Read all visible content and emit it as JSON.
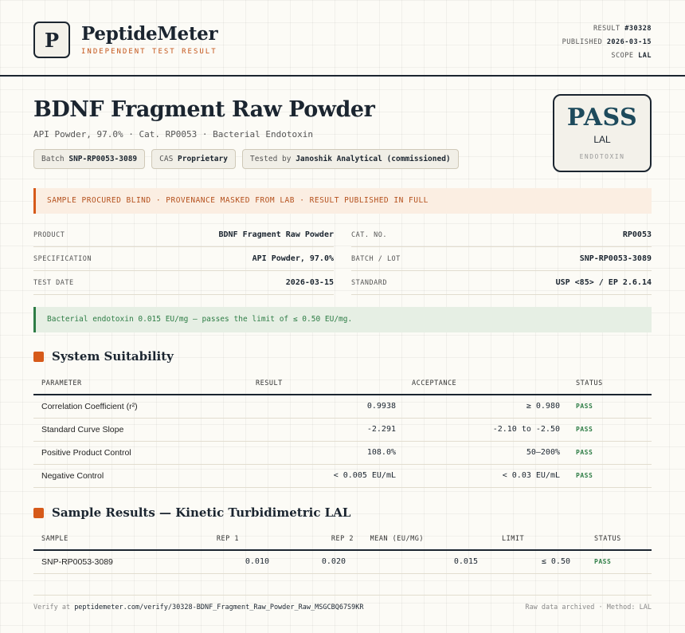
{
  "header": {
    "logo_letter": "P",
    "brand": "PeptideMeter",
    "brand_sub": "INDEPENDENT TEST RESULT",
    "result_label": "RESULT",
    "result_value": "#30328",
    "published_label": "PUBLISHED",
    "published_value": "2026-03-15",
    "scope_label": "SCOPE",
    "scope_value": "LAL"
  },
  "title": "BDNF Fragment Raw Powder",
  "subtitle": "API Powder, 97.0% · Cat. RP0053 · Bacterial Endotoxin",
  "chips": {
    "batch_label": "Batch",
    "batch_value": "SNP-RP0053-3089",
    "cas_label": "CAS",
    "cas_value": "Proprietary",
    "tested_label": "Tested by",
    "tested_value": "Janoshik Analytical (commissioned)"
  },
  "badge": {
    "result": "PASS",
    "method": "LAL",
    "sub": "ENDOTOXIN"
  },
  "notice": "SAMPLE PROCURED BLIND · PROVENANCE MASKED FROM LAB · RESULT PUBLISHED IN FULL",
  "info": {
    "product_label": "PRODUCT",
    "product_value": "BDNF Fragment Raw Powder",
    "cat_label": "CAT. NO.",
    "cat_value": "RP0053",
    "spec_label": "SPECIFICATION",
    "spec_value": "API Powder, 97.0%",
    "batch_label": "BATCH / LOT",
    "batch_value": "SNP-RP0053-3089",
    "date_label": "TEST DATE",
    "date_value": "2026-03-15",
    "standard_label": "STANDARD",
    "standard_value": "USP <85> / EP 2.6.14"
  },
  "result_notice": "Bacterial endotoxin 0.015 EU/mg — passes the limit of ≤ 0.50 EU/mg.",
  "suitability": {
    "title": "System Suitability",
    "headers": {
      "parameter": "PARAMETER",
      "result": "RESULT",
      "acceptance": "ACCEPTANCE",
      "status": "STATUS"
    },
    "rows": [
      {
        "parameter": "Correlation Coefficient (r²)",
        "result": "0.9938",
        "acceptance": "≥ 0.980",
        "status": "PASS"
      },
      {
        "parameter": "Standard Curve Slope",
        "result": "-2.291",
        "acceptance": "-2.10 to -2.50",
        "status": "PASS"
      },
      {
        "parameter": "Positive Product Control",
        "result": "108.0%",
        "acceptance": "50–200%",
        "status": "PASS"
      },
      {
        "parameter": "Negative Control",
        "result": "< 0.005 EU/mL",
        "acceptance": "< 0.03 EU/mL",
        "status": "PASS"
      }
    ]
  },
  "samples": {
    "title": "Sample Results — Kinetic Turbidimetric LAL",
    "headers": {
      "sample": "SAMPLE",
      "rep1": "REP 1",
      "rep2": "REP 2",
      "mean": "MEAN (EU/MG)",
      "limit": "LIMIT",
      "status": "STATUS"
    },
    "rows": [
      {
        "sample": "SNP-RP0053-3089",
        "rep1": "0.010",
        "rep2": "0.020",
        "mean": "0.015",
        "limit": "≤ 0.50",
        "status": "PASS"
      }
    ]
  },
  "footer": {
    "verify_label": "Verify at",
    "verify_url": "peptidemeter.com/verify/30328-BDNF_Fragment_Raw_Powder_Raw_MSGCBQ67S9KR",
    "right": "Raw data archived · Method: LAL"
  }
}
